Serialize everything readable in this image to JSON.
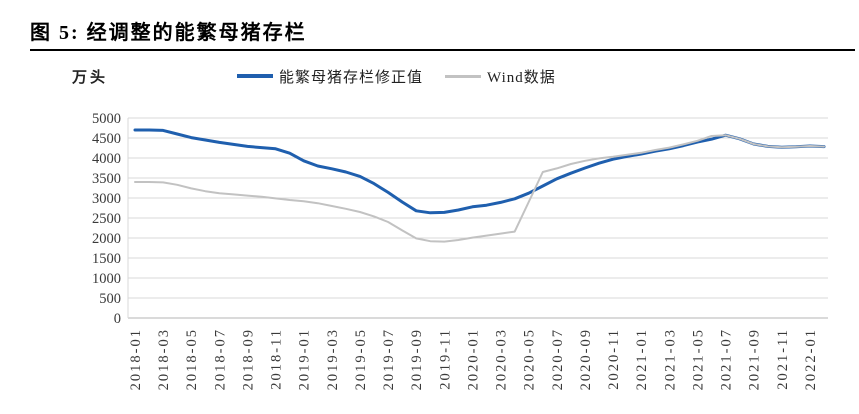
{
  "figure": {
    "title": "图 5: 经调整的能繁母猪存栏"
  },
  "chart": {
    "unit_label": "万头"
  },
  "chart_data": {
    "type": "line",
    "title": "图 5: 经调整的能繁母猪存栏",
    "ylabel": "万头",
    "xlabel": "",
    "ylim": [
      0,
      5000
    ],
    "ytick_step": 500,
    "grid": true,
    "legend_position": "top-center",
    "x_tick_every": 2,
    "x": [
      "2018-01",
      "2018-02",
      "2018-03",
      "2018-04",
      "2018-05",
      "2018-06",
      "2018-07",
      "2018-08",
      "2018-09",
      "2018-10",
      "2018-11",
      "2018-12",
      "2019-01",
      "2019-02",
      "2019-03",
      "2019-04",
      "2019-05",
      "2019-06",
      "2019-07",
      "2019-08",
      "2019-09",
      "2019-10",
      "2019-11",
      "2019-12",
      "2020-01",
      "2020-02",
      "2020-03",
      "2020-04",
      "2020-05",
      "2020-06",
      "2020-07",
      "2020-08",
      "2020-09",
      "2020-10",
      "2020-11",
      "2020-12",
      "2021-01",
      "2021-02",
      "2021-03",
      "2021-04",
      "2021-05",
      "2021-06",
      "2021-07",
      "2021-08",
      "2021-09",
      "2021-10",
      "2021-11",
      "2021-12",
      "2022-01",
      "2022-02"
    ],
    "series": [
      {
        "name": "能繁母猪存栏修正值",
        "color": "#1f5fae",
        "width": 3,
        "values": [
          4700,
          4700,
          4690,
          4600,
          4510,
          4450,
          4390,
          4340,
          4290,
          4260,
          4230,
          4120,
          3930,
          3800,
          3730,
          3650,
          3540,
          3360,
          3140,
          2900,
          2680,
          2630,
          2640,
          2700,
          2780,
          2820,
          2890,
          2980,
          3120,
          3300,
          3480,
          3620,
          3750,
          3870,
          3970,
          4040,
          4100,
          4170,
          4230,
          4310,
          4400,
          4470,
          4570,
          4480,
          4350,
          4290,
          4270,
          4280,
          4300,
          4285
        ]
      },
      {
        "name": "Wind数据",
        "color": "#c2c2c2",
        "width": 2,
        "values": [
          3400,
          3400,
          3390,
          3330,
          3240,
          3170,
          3120,
          3090,
          3060,
          3030,
          2990,
          2950,
          2920,
          2870,
          2800,
          2730,
          2650,
          2540,
          2400,
          2190,
          1990,
          1920,
          1910,
          1950,
          2010,
          2060,
          2110,
          2160,
          2900,
          3650,
          3740,
          3850,
          3930,
          3990,
          4030,
          4080,
          4130,
          4200,
          4260,
          4340,
          4430,
          4550,
          4570,
          4480,
          4350,
          4290,
          4270,
          4280,
          4300,
          4285
        ]
      }
    ],
    "colors": {
      "gridline": "#d9d9d9",
      "axis_line": "#b5b5b5",
      "tick_text": "#3a3a3a"
    }
  }
}
